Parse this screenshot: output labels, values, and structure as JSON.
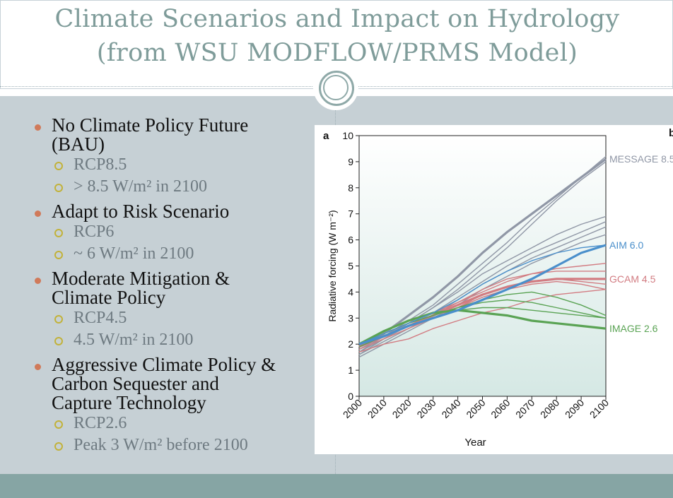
{
  "slide": {
    "title_line1": "Climate Scenarios and Impact on Hydrology",
    "title_line2": "(from WSU MODFLOW/PRMS Model)",
    "bullets": [
      {
        "text_lines": [
          "No Climate Policy Future",
          "(BAU)"
        ],
        "subs": [
          "RCP8.5",
          "> 8.5 W/m² in 2100"
        ]
      },
      {
        "text_lines": [
          "Adapt to Risk Scenario"
        ],
        "subs": [
          "RCP6",
          "~ 6 W/m² in 2100"
        ]
      },
      {
        "text_lines": [
          "Moderate Mitigation &",
          "Climate Policy"
        ],
        "subs": [
          "RCP4.5",
          "4.5 W/m² in 2100"
        ]
      },
      {
        "text_lines": [
          "Aggressive Climate Policy &",
          "Carbon Sequester and",
          "Capture Technology"
        ],
        "subs": [
          "RCP2.6",
          "Peak 3 W/m² before 2100"
        ]
      }
    ]
  },
  "chart_data": {
    "type": "line",
    "panel_label": "a",
    "panel_label_right": "b",
    "xlabel": "Year",
    "ylabel": "Radiative forcing (W m⁻²)",
    "xlim": [
      2000,
      2100
    ],
    "ylim": [
      0,
      10
    ],
    "xticks": [
      "2000",
      "2010",
      "2020",
      "2030",
      "2040",
      "2050",
      "2060",
      "2070",
      "2080",
      "2090",
      "2100"
    ],
    "yticks": [
      "0",
      "1",
      "2",
      "3",
      "4",
      "5",
      "6",
      "7",
      "8",
      "9",
      "10"
    ],
    "colors": {
      "MESSAGE": "#9097a6",
      "AIM": "#4a8fcb",
      "GCAM": "#d27c82",
      "IMAGE": "#5aa354"
    },
    "series": [
      {
        "name": "MESSAGE 8.5",
        "group": "MESSAGE",
        "main": true,
        "x": [
          2000,
          2010,
          2020,
          2030,
          2040,
          2050,
          2060,
          2070,
          2080,
          2090,
          2100
        ],
        "y": [
          1.9,
          2.4,
          3.1,
          3.8,
          4.6,
          5.5,
          6.3,
          7.0,
          7.7,
          8.4,
          9.1
        ]
      },
      {
        "name": "",
        "group": "MESSAGE",
        "main": false,
        "x": [
          2000,
          2010,
          2020,
          2030,
          2040,
          2050,
          2060,
          2070,
          2080,
          2090,
          2100
        ],
        "y": [
          1.7,
          2.3,
          2.9,
          3.5,
          4.3,
          5.1,
          5.9,
          6.8,
          7.6,
          8.4,
          9.2
        ]
      },
      {
        "name": "",
        "group": "MESSAGE",
        "main": false,
        "x": [
          2000,
          2010,
          2020,
          2030,
          2040,
          2050,
          2060,
          2070,
          2080,
          2090,
          2100
        ],
        "y": [
          1.6,
          2.2,
          2.8,
          3.4,
          4.1,
          4.9,
          5.7,
          6.6,
          7.5,
          8.3,
          9.0
        ]
      },
      {
        "name": "",
        "group": "MESSAGE",
        "main": false,
        "x": [
          2000,
          2010,
          2020,
          2030,
          2040,
          2050,
          2060,
          2070,
          2080,
          2090,
          2100
        ],
        "y": [
          1.8,
          2.3,
          2.8,
          3.4,
          4.0,
          4.7,
          5.2,
          5.7,
          6.2,
          6.6,
          6.9
        ]
      },
      {
        "name": "",
        "group": "MESSAGE",
        "main": false,
        "x": [
          2000,
          2010,
          2020,
          2030,
          2040,
          2050,
          2060,
          2070,
          2080,
          2090,
          2100
        ],
        "y": [
          1.7,
          2.2,
          2.7,
          3.2,
          3.8,
          4.4,
          5.0,
          5.5,
          5.9,
          6.3,
          6.7
        ]
      },
      {
        "name": "",
        "group": "MESSAGE",
        "main": false,
        "x": [
          2000,
          2010,
          2020,
          2030,
          2040,
          2050,
          2060,
          2070,
          2080,
          2090,
          2100
        ],
        "y": [
          1.6,
          2.1,
          2.6,
          3.1,
          3.7,
          4.3,
          4.8,
          5.3,
          5.7,
          6.1,
          6.5
        ]
      },
      {
        "name": "",
        "group": "MESSAGE",
        "main": false,
        "x": [
          2000,
          2010,
          2020,
          2030,
          2040,
          2050,
          2060,
          2070,
          2080,
          2090,
          2100
        ],
        "y": [
          1.5,
          2.0,
          2.5,
          3.0,
          3.5,
          4.1,
          4.6,
          5.1,
          5.5,
          5.9,
          6.2
        ]
      },
      {
        "name": "AIM 6.0",
        "group": "AIM",
        "main": true,
        "x": [
          2000,
          2010,
          2020,
          2030,
          2040,
          2050,
          2060,
          2070,
          2080,
          2090,
          2100
        ],
        "y": [
          2.0,
          2.3,
          2.7,
          3.0,
          3.3,
          3.7,
          4.1,
          4.5,
          5.0,
          5.5,
          5.8
        ]
      },
      {
        "name": "",
        "group": "AIM",
        "main": false,
        "x": [
          2000,
          2010,
          2020,
          2030,
          2040,
          2050,
          2060,
          2070,
          2080,
          2090,
          2100
        ],
        "y": [
          2.0,
          2.4,
          2.8,
          3.2,
          3.7,
          4.3,
          4.8,
          5.2,
          5.5,
          5.7,
          5.8
        ]
      },
      {
        "name": "GCAM 4.5",
        "group": "GCAM",
        "main": true,
        "x": [
          2000,
          2010,
          2020,
          2030,
          2040,
          2050,
          2060,
          2070,
          2080,
          2090,
          2100
        ],
        "y": [
          1.9,
          2.3,
          2.7,
          3.1,
          3.5,
          3.9,
          4.2,
          4.4,
          4.5,
          4.5,
          4.5
        ]
      },
      {
        "name": "",
        "group": "GCAM",
        "main": false,
        "x": [
          2000,
          2010,
          2020,
          2030,
          2040,
          2050,
          2060,
          2070,
          2080,
          2090,
          2100
        ],
        "y": [
          2.0,
          2.4,
          2.8,
          3.2,
          3.6,
          4.1,
          4.5,
          4.7,
          4.9,
          5.0,
          5.1
        ]
      },
      {
        "name": "",
        "group": "GCAM",
        "main": false,
        "x": [
          2000,
          2010,
          2020,
          2030,
          2040,
          2050,
          2060,
          2070,
          2080,
          2090,
          2100
        ],
        "y": [
          1.9,
          2.3,
          2.7,
          3.1,
          3.6,
          4.0,
          4.4,
          4.7,
          4.8,
          4.8,
          4.8
        ]
      },
      {
        "name": "",
        "group": "GCAM",
        "main": false,
        "x": [
          2000,
          2010,
          2020,
          2030,
          2040,
          2050,
          2060,
          2070,
          2080,
          2090,
          2100
        ],
        "y": [
          1.8,
          2.2,
          2.6,
          3.0,
          3.4,
          3.9,
          4.2,
          4.4,
          4.5,
          4.4,
          4.3
        ]
      },
      {
        "name": "",
        "group": "GCAM",
        "main": false,
        "x": [
          2000,
          2010,
          2020,
          2030,
          2040,
          2050,
          2060,
          2070,
          2080,
          2090,
          2100
        ],
        "y": [
          1.9,
          2.3,
          2.7,
          3.1,
          3.4,
          3.8,
          4.1,
          4.3,
          4.4,
          4.3,
          4.1
        ]
      },
      {
        "name": "",
        "group": "GCAM",
        "main": false,
        "x": [
          2000,
          2010,
          2020,
          2030,
          2040,
          2050,
          2060,
          2070,
          2080,
          2090,
          2100
        ],
        "y": [
          1.7,
          2.0,
          2.2,
          2.6,
          2.9,
          3.2,
          3.4,
          3.7,
          3.9,
          4.0,
          4.1
        ]
      },
      {
        "name": "IMAGE 2.6",
        "group": "IMAGE",
        "main": true,
        "x": [
          2000,
          2010,
          2020,
          2030,
          2040,
          2050,
          2060,
          2070,
          2080,
          2090,
          2100
        ],
        "y": [
          2.0,
          2.5,
          2.9,
          3.2,
          3.3,
          3.2,
          3.1,
          2.9,
          2.8,
          2.7,
          2.6
        ]
      },
      {
        "name": "",
        "group": "IMAGE",
        "main": false,
        "x": [
          2000,
          2010,
          2020,
          2030,
          2040,
          2050,
          2060,
          2070,
          2080,
          2090,
          2100
        ],
        "y": [
          2.0,
          2.4,
          2.8,
          3.1,
          3.4,
          3.6,
          3.7,
          3.6,
          3.4,
          3.2,
          3.0
        ]
      },
      {
        "name": "",
        "group": "IMAGE",
        "main": false,
        "x": [
          2000,
          2010,
          2020,
          2030,
          2040,
          2050,
          2060,
          2070,
          2080,
          2090,
          2100
        ],
        "y": [
          2.0,
          2.4,
          2.8,
          3.1,
          3.4,
          3.7,
          3.9,
          4.0,
          3.8,
          3.5,
          3.1
        ]
      },
      {
        "name": "",
        "group": "IMAGE",
        "main": false,
        "x": [
          2000,
          2010,
          2020,
          2030,
          2040,
          2050,
          2060,
          2070,
          2080,
          2090,
          2100
        ],
        "y": [
          1.9,
          2.3,
          2.7,
          3.0,
          3.3,
          3.4,
          3.4,
          3.3,
          3.2,
          3.1,
          3.0
        ]
      }
    ]
  }
}
